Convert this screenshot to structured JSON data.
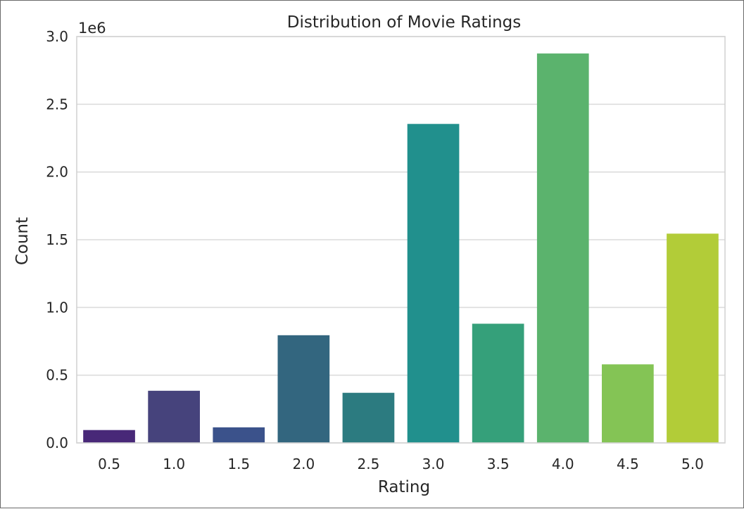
{
  "chart_data": {
    "type": "bar",
    "title": "Distribution of Movie Ratings",
    "xlabel": "Rating",
    "ylabel": "Count",
    "y_offset_label": "1e6",
    "categories": [
      "0.5",
      "1.0",
      "1.5",
      "2.0",
      "2.5",
      "3.0",
      "3.5",
      "4.0",
      "4.5",
      "5.0"
    ],
    "values": [
      95000,
      385000,
      115000,
      795000,
      370000,
      2355000,
      880000,
      2875000,
      580000,
      1545000
    ],
    "colors": [
      "#482878",
      "#46437c",
      "#3b528b",
      "#33667f",
      "#2c7b80",
      "#21908d",
      "#35a07a",
      "#5bb36d",
      "#84c455",
      "#b2cc38"
    ],
    "ylim": [
      0,
      3000000
    ],
    "yticks": [
      0,
      500000,
      1000000,
      1500000,
      2000000,
      2500000,
      3000000
    ],
    "ytick_labels": [
      "0.0",
      "0.5",
      "1.0",
      "1.5",
      "2.0",
      "2.5",
      "3.0"
    ],
    "grid": "horizontal",
    "legend": "none"
  }
}
